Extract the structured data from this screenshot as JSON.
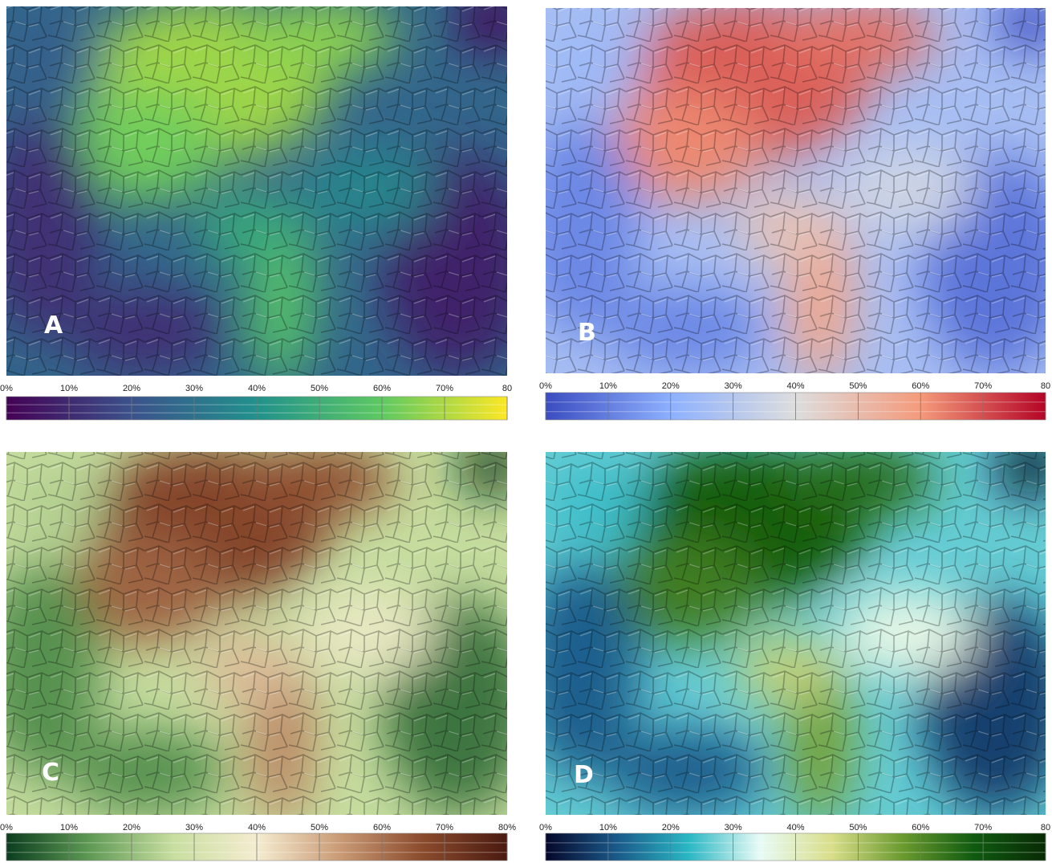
{
  "panels": [
    {
      "label": "A",
      "colormap": [
        "#440154",
        "#3b528b",
        "#21918c",
        "#5ec962",
        "#fde725"
      ],
      "lim": [
        0,
        80
      ],
      "ticks": [
        {
          "value": 0,
          "label": "0%"
        },
        {
          "value": 10,
          "label": "10%"
        },
        {
          "value": 20,
          "label": "20%"
        },
        {
          "value": 30,
          "label": "30%"
        },
        {
          "value": 40,
          "label": "40%"
        },
        {
          "value": 50,
          "label": "50%"
        },
        {
          "value": 60,
          "label": "60%"
        },
        {
          "value": 70,
          "label": "70%"
        },
        {
          "value": 80,
          "label": "80"
        }
      ]
    },
    {
      "label": "B",
      "colormap": [
        "#3b4cc0",
        "#8db0fe",
        "#dddddd",
        "#f49a7b",
        "#b40426"
      ],
      "lim": [
        0,
        80
      ],
      "ticks": [
        {
          "value": 0,
          "label": "0%"
        },
        {
          "value": 10,
          "label": "10%"
        },
        {
          "value": 20,
          "label": "20%"
        },
        {
          "value": 30,
          "label": "30%"
        },
        {
          "value": 40,
          "label": "40%"
        },
        {
          "value": 50,
          "label": "50%"
        },
        {
          "value": 60,
          "label": "60%"
        },
        {
          "value": 70,
          "label": "70%"
        },
        {
          "value": 80,
          "label": "80"
        }
      ]
    },
    {
      "label": "C",
      "colormap": [
        "#0b3d1e",
        "#5f9a55",
        "#c8dea0",
        "#f5ecd0",
        "#c99a75",
        "#8a4a2c",
        "#4a1a10"
      ],
      "lim": [
        0,
        80
      ],
      "ticks": [
        {
          "value": 0,
          "label": "0%"
        },
        {
          "value": 10,
          "label": "10%"
        },
        {
          "value": 20,
          "label": "20%"
        },
        {
          "value": 30,
          "label": "30%"
        },
        {
          "value": 40,
          "label": "40%"
        },
        {
          "value": 50,
          "label": "50%"
        },
        {
          "value": 60,
          "label": "60%"
        },
        {
          "value": 70,
          "label": "70%"
        },
        {
          "value": 80,
          "label": "80%"
        }
      ]
    },
    {
      "label": "D",
      "colormap": [
        "#05072b",
        "#1a5a8a",
        "#2ab7c4",
        "#e8fbf6",
        "#d9de8a",
        "#6a9a2e",
        "#0f5a10",
        "#082b05"
      ],
      "lim": [
        0,
        80
      ],
      "ticks": [
        {
          "value": 0,
          "label": "0%"
        },
        {
          "value": 10,
          "label": "10%"
        },
        {
          "value": 20,
          "label": "20%"
        },
        {
          "value": 30,
          "label": "30%"
        },
        {
          "value": 40,
          "label": "40%"
        },
        {
          "value": 50,
          "label": "50%"
        },
        {
          "value": 60,
          "label": "60%"
        },
        {
          "value": 70,
          "label": "70%"
        },
        {
          "value": 80,
          "label": "80"
        }
      ]
    }
  ]
}
